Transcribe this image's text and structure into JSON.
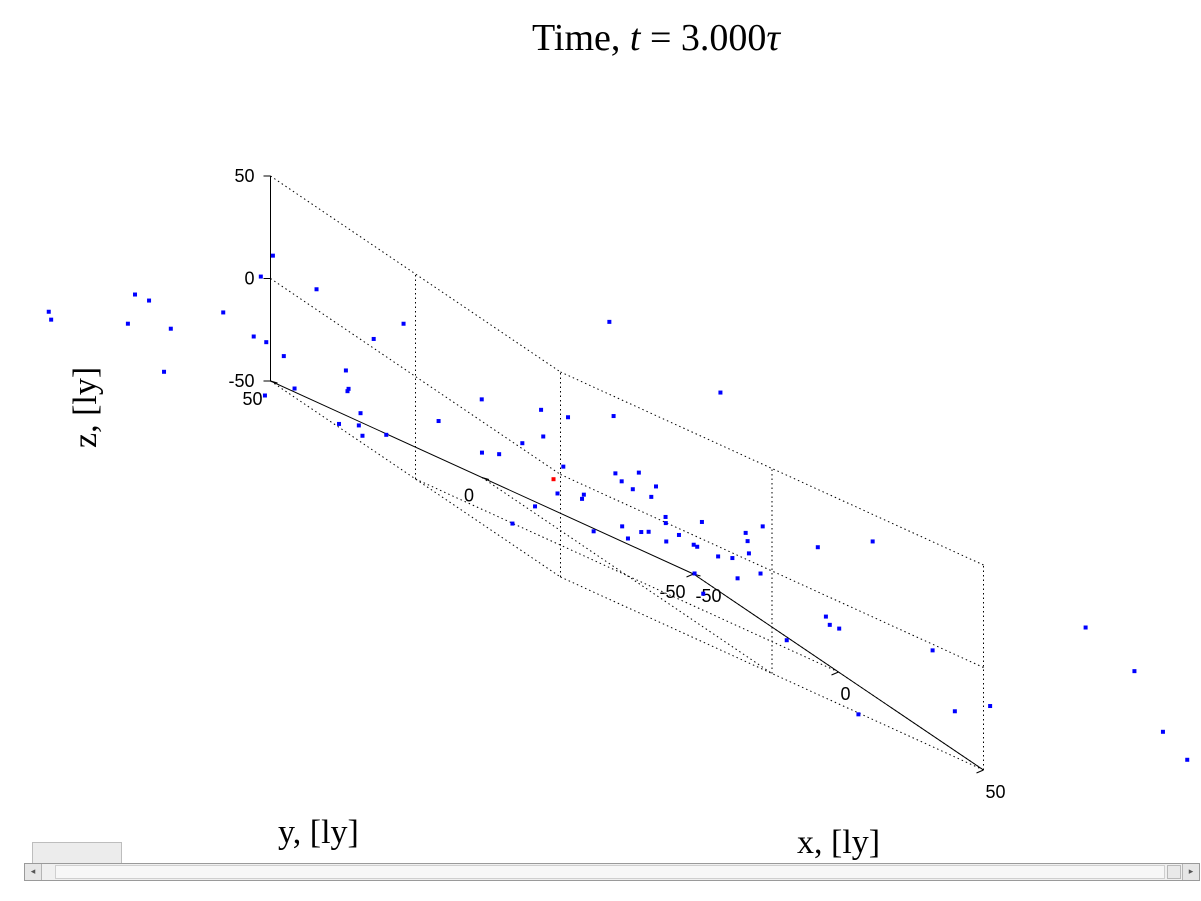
{
  "chart_data": {
    "type": "scatter3d",
    "title_prefix": "Time, ",
    "title_var": "t",
    "title_eq": " = 3.000",
    "title_unit": "τ",
    "xlabel": "x, [ly]",
    "ylabel": "y, [ly]",
    "zlabel": "z, [ly]",
    "xlim": [
      -50,
      50
    ],
    "ylim": [
      -50,
      50
    ],
    "zlim": [
      -50,
      50
    ],
    "xticks": [
      -50,
      0,
      50
    ],
    "yticks": [
      -50,
      0,
      50
    ],
    "zticks": [
      -50,
      0,
      50
    ],
    "xtick_labels": [
      "-50",
      "0",
      "50"
    ],
    "ytick_labels": [
      "-50",
      "0",
      "50"
    ],
    "ztick_labels": [
      "-50",
      "0",
      "50"
    ],
    "grid": true,
    "series": [
      {
        "color": "#0000ff",
        "points": [
          [
            -60,
            95,
            -72
          ],
          [
            -13,
            -31,
            56
          ],
          [
            -9,
            -2,
            67
          ],
          [
            20,
            -41,
            -60
          ],
          [
            58,
            2,
            -28
          ],
          [
            86,
            -61,
            43
          ],
          [
            75,
            -57,
            50
          ],
          [
            90,
            -65,
            21
          ],
          [
            94,
            -68,
            14
          ],
          [
            57,
            -19,
            39
          ],
          [
            80,
            -31,
            -8
          ],
          [
            41,
            -17,
            19
          ],
          [
            38,
            -2,
            9
          ],
          [
            66,
            -27,
            2
          ],
          [
            54,
            -10,
            -9
          ],
          [
            62,
            -35,
            -24
          ],
          [
            44,
            -20,
            -15
          ],
          [
            22,
            -17,
            11
          ],
          [
            3,
            16,
            15
          ],
          [
            7,
            2,
            5
          ],
          [
            -20,
            70,
            21
          ],
          [
            -30,
            66,
            5
          ],
          [
            -21,
            59,
            14
          ],
          [
            -29,
            40,
            0
          ],
          [
            -26,
            35,
            15
          ],
          [
            -24,
            50,
            -20
          ],
          [
            -34,
            93,
            -33
          ],
          [
            -9,
            -3,
            22
          ],
          [
            1,
            21,
            12
          ],
          [
            30,
            -11,
            -10
          ],
          [
            4,
            4,
            -4
          ],
          [
            4,
            -3,
            -5
          ],
          [
            23,
            0,
            -13
          ],
          [
            26,
            -11,
            -4
          ],
          [
            13,
            -16,
            -14
          ],
          [
            -24,
            79,
            -19
          ],
          [
            -26,
            48,
            -29
          ],
          [
            -50,
            51,
            -32
          ],
          [
            -60,
            40,
            -38
          ],
          [
            -66,
            43,
            -37
          ],
          [
            -49,
            45,
            -48
          ],
          [
            -70,
            70,
            -60
          ],
          [
            -70,
            65,
            -44
          ],
          [
            -18,
            22,
            -2
          ],
          [
            -13,
            48,
            -39
          ],
          [
            -3,
            13,
            -12
          ],
          [
            -22,
            53,
            -47
          ],
          [
            -21,
            49,
            -43
          ],
          [
            -35,
            39,
            -41
          ],
          [
            -12,
            22,
            -23
          ],
          [
            -11,
            37,
            -20
          ],
          [
            -15,
            24,
            -27
          ],
          [
            -4,
            22,
            -10
          ],
          [
            2,
            12,
            -22
          ],
          [
            6,
            12,
            -34
          ],
          [
            7,
            15,
            -18
          ],
          [
            16,
            -5,
            -29
          ],
          [
            19,
            -5,
            -36
          ],
          [
            15,
            1,
            -20
          ],
          [
            10,
            8,
            -24
          ],
          [
            6,
            -1,
            -22
          ],
          [
            9,
            -3,
            -13
          ],
          [
            32,
            -26,
            -19
          ],
          [
            12,
            8,
            -28
          ],
          [
            -5,
            13,
            -27
          ],
          [
            -4,
            19,
            -38
          ],
          [
            -59,
            69,
            -72
          ],
          [
            -49,
            52,
            -58
          ],
          [
            -22,
            12,
            -57
          ],
          [
            -80,
            53,
            -56
          ],
          [
            -90,
            75,
            -78
          ],
          [
            -46,
            31,
            -55
          ],
          [
            2,
            -2,
            -25
          ],
          [
            14,
            -7,
            -16
          ],
          [
            6,
            -5,
            -11
          ],
          [
            15,
            -2,
            -14
          ],
          [
            20,
            -4,
            -1
          ],
          [
            27,
            -10,
            2
          ],
          [
            10,
            0,
            3
          ],
          [
            2,
            0,
            -6
          ],
          [
            -7,
            15,
            -3
          ],
          [
            -4,
            0,
            -4
          ],
          [
            25,
            -9,
            -19
          ],
          [
            11,
            -14,
            -17
          ],
          [
            -57,
            27,
            -40
          ]
        ]
      },
      {
        "color": "#ff0000",
        "points": [
          [
            -2,
            16,
            -20
          ]
        ]
      }
    ]
  }
}
